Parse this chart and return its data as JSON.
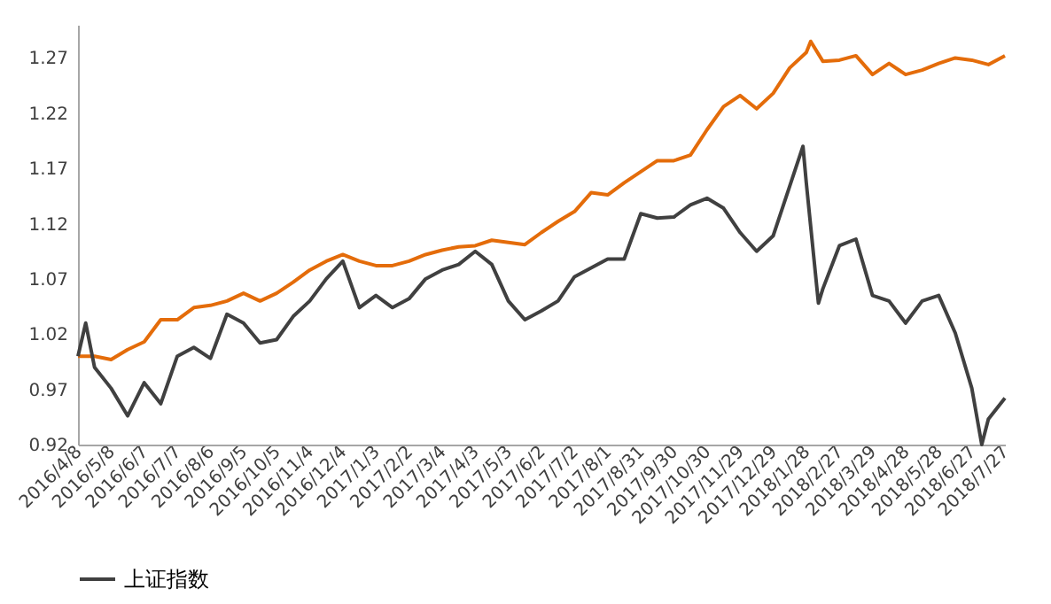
{
  "chart_data": {
    "type": "line",
    "legend": "bottom",
    "grid": false,
    "marker": "none",
    "line_style": "solid",
    "ylim": [
      0.92,
      1.3
    ],
    "yticks": [
      0.92,
      0.97,
      1.02,
      1.07,
      1.12,
      1.17,
      1.22,
      1.27
    ],
    "xlim": [
      "2016-04-08",
      "2018-07-27"
    ],
    "xticks": [
      {
        "value": "2016-04-08",
        "label": "2016/4/8"
      },
      {
        "value": "2016-05-08",
        "label": "2016/5/8"
      },
      {
        "value": "2016-06-07",
        "label": "2016/6/7"
      },
      {
        "value": "2016-07-07",
        "label": "2016/7/7"
      },
      {
        "value": "2016-08-06",
        "label": "2016/8/6"
      },
      {
        "value": "2016-09-05",
        "label": "2016/9/5"
      },
      {
        "value": "2016-10-05",
        "label": "2016/10/5"
      },
      {
        "value": "2016-11-04",
        "label": "2016/11/4"
      },
      {
        "value": "2016-12-04",
        "label": "2016/12/4"
      },
      {
        "value": "2017-01-03",
        "label": "2017/1/3"
      },
      {
        "value": "2017-02-02",
        "label": "2017/2/2"
      },
      {
        "value": "2017-03-04",
        "label": "2017/3/4"
      },
      {
        "value": "2017-04-03",
        "label": "2017/4/3"
      },
      {
        "value": "2017-05-03",
        "label": "2017/5/3"
      },
      {
        "value": "2017-06-02",
        "label": "2017/6/2"
      },
      {
        "value": "2017-07-02",
        "label": "2017/7/2"
      },
      {
        "value": "2017-08-01",
        "label": "2017/8/1"
      },
      {
        "value": "2017-08-31",
        "label": "2017/8/31"
      },
      {
        "value": "2017-09-30",
        "label": "2017/9/30"
      },
      {
        "value": "2017-10-30",
        "label": "2017/10/30"
      },
      {
        "value": "2017-11-29",
        "label": "2017/11/29"
      },
      {
        "value": "2017-12-29",
        "label": "2017/12/29"
      },
      {
        "value": "2018-01-28",
        "label": "2018/1/28"
      },
      {
        "value": "2018-02-27",
        "label": "2018/2/27"
      },
      {
        "value": "2018-03-29",
        "label": "2018/3/29"
      },
      {
        "value": "2018-04-28",
        "label": "2018/4/28"
      },
      {
        "value": "2018-05-28",
        "label": "2018/5/28"
      },
      {
        "value": "2018-06-27",
        "label": "2018/6/27"
      },
      {
        "value": "2018-07-27",
        "label": "2018/7/27"
      }
    ],
    "series": [
      {
        "color": "#e46c0a",
        "x": [
          "2016-04-08",
          "2016-04-23",
          "2016-05-08",
          "2016-05-23",
          "2016-06-07",
          "2016-06-22",
          "2016-07-07",
          "2016-07-22",
          "2016-08-06",
          "2016-08-21",
          "2016-09-05",
          "2016-09-20",
          "2016-10-05",
          "2016-10-20",
          "2016-11-04",
          "2016-11-19",
          "2016-12-04",
          "2016-12-19",
          "2017-01-03",
          "2017-01-18",
          "2017-02-02",
          "2017-02-17",
          "2017-03-04",
          "2017-03-19",
          "2017-04-03",
          "2017-04-18",
          "2017-05-03",
          "2017-05-18",
          "2017-06-02",
          "2017-06-17",
          "2017-07-02",
          "2017-07-17",
          "2017-08-01",
          "2017-08-16",
          "2017-08-31",
          "2017-09-15",
          "2017-09-30",
          "2017-10-15",
          "2017-10-30",
          "2017-11-14",
          "2017-11-29",
          "2017-12-14",
          "2017-12-29",
          "2018-01-13",
          "2018-01-28",
          "2018-02-01",
          "2018-02-12",
          "2018-02-27",
          "2018-03-14",
          "2018-03-29",
          "2018-04-13",
          "2018-04-28",
          "2018-05-13",
          "2018-05-28",
          "2018-06-12",
          "2018-06-27",
          "2018-07-12",
          "2018-07-27"
        ],
        "values": [
          1.0,
          1.0,
          0.997,
          1.006,
          1.013,
          1.033,
          1.033,
          1.044,
          1.046,
          1.05,
          1.057,
          1.05,
          1.057,
          1.067,
          1.078,
          1.086,
          1.092,
          1.086,
          1.082,
          1.082,
          1.086,
          1.092,
          1.096,
          1.099,
          1.1,
          1.105,
          1.103,
          1.101,
          1.112,
          1.122,
          1.131,
          1.148,
          1.146,
          1.157,
          1.167,
          1.177,
          1.177,
          1.182,
          1.205,
          1.226,
          1.236,
          1.224,
          1.238,
          1.261,
          1.275,
          1.285,
          1.267,
          1.268,
          1.272,
          1.255,
          1.265,
          1.255,
          1.259,
          1.265,
          1.27,
          1.268,
          1.264,
          1.272
        ]
      },
      {
        "name": "上证指数",
        "color": "#404040",
        "x": [
          "2016-04-08",
          "2016-04-15",
          "2016-04-23",
          "2016-05-08",
          "2016-05-23",
          "2016-06-07",
          "2016-06-22",
          "2016-07-07",
          "2016-07-22",
          "2016-08-06",
          "2016-08-21",
          "2016-09-05",
          "2016-09-20",
          "2016-10-05",
          "2016-10-20",
          "2016-11-04",
          "2016-11-19",
          "2016-12-04",
          "2016-12-19",
          "2017-01-03",
          "2017-01-18",
          "2017-02-02",
          "2017-02-17",
          "2017-03-04",
          "2017-03-19",
          "2017-04-03",
          "2017-04-18",
          "2017-05-03",
          "2017-05-18",
          "2017-06-02",
          "2017-06-17",
          "2017-07-02",
          "2017-07-17",
          "2017-08-01",
          "2017-08-16",
          "2017-08-31",
          "2017-09-15",
          "2017-09-30",
          "2017-10-15",
          "2017-10-30",
          "2017-11-14",
          "2017-11-29",
          "2017-12-14",
          "2017-12-29",
          "2018-01-13",
          "2018-01-25",
          "2018-01-28",
          "2018-02-08",
          "2018-02-12",
          "2018-02-27",
          "2018-03-14",
          "2018-03-29",
          "2018-04-13",
          "2018-04-28",
          "2018-05-13",
          "2018-05-28",
          "2018-06-12",
          "2018-06-27",
          "2018-07-06",
          "2018-07-12",
          "2018-07-27"
        ],
        "values": [
          1.0,
          1.03,
          0.99,
          0.971,
          0.946,
          0.976,
          0.957,
          1.0,
          1.008,
          0.998,
          1.038,
          1.03,
          1.012,
          1.015,
          1.036,
          1.05,
          1.07,
          1.086,
          1.044,
          1.055,
          1.044,
          1.052,
          1.07,
          1.078,
          1.083,
          1.095,
          1.083,
          1.05,
          1.033,
          1.041,
          1.05,
          1.072,
          1.08,
          1.088,
          1.088,
          1.129,
          1.125,
          1.126,
          1.137,
          1.143,
          1.134,
          1.112,
          1.095,
          1.109,
          1.154,
          1.19,
          1.157,
          1.048,
          1.061,
          1.1,
          1.106,
          1.055,
          1.05,
          1.03,
          1.05,
          1.055,
          1.021,
          0.971,
          0.92,
          0.943,
          0.962
        ]
      }
    ]
  }
}
